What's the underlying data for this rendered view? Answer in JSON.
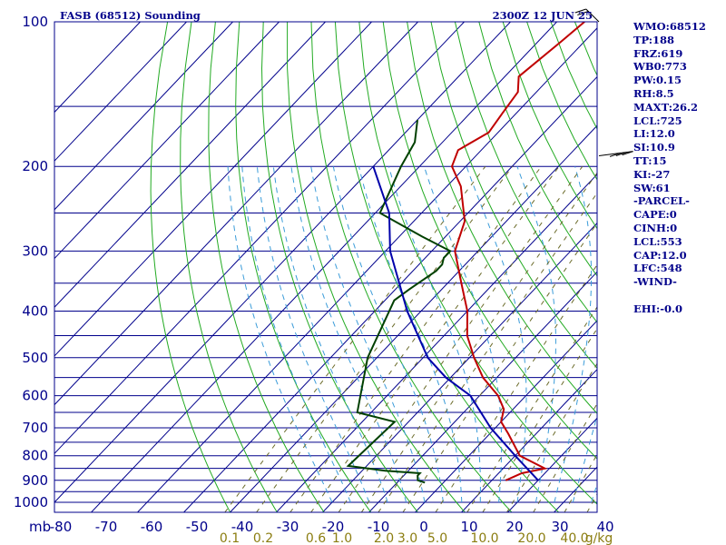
{
  "header": {
    "title": "FASB (68512) Sounding",
    "time": "2300Z 12 JUN 25"
  },
  "indices": [
    "WMO:68512",
    "TP:188",
    "FRZ:619",
    "WB0:773",
    "PW:0.15",
    "RH:8.5",
    "MAXT:26.2",
    "LCL:725",
    "LI:12.0",
    "SI:10.9",
    "TT:15",
    "KI:-27",
    "SW:61",
    "-PARCEL-",
    "CAPE:0",
    "CINH:0",
    "LCL:553",
    "CAP:12.0",
    "LFC:548",
    "-WIND-",
    "",
    "EHI:-0.0"
  ],
  "chart_data": {
    "type": "line",
    "title": "FASB (68512) Sounding",
    "subtitle": "2300Z 12 JUN 25",
    "xlabel": "",
    "ylabel": "mb",
    "x_range": [
      -80,
      0
    ],
    "pressure_range": [
      100,
      1000
    ],
    "y_scale": "log",
    "pressure_ticks": [
      100,
      200,
      300,
      400,
      500,
      600,
      700,
      800,
      900,
      1000
    ],
    "temperature_ticks": [
      "-80",
      "-70",
      "-60",
      "-50",
      "-40",
      "-30",
      "-20",
      "-10",
      "0",
      "10",
      "20",
      "30",
      "40"
    ],
    "mixing_ratio_labels": [
      "0.1",
      "0.2",
      "0.6",
      "1.0",
      "2.0",
      "3.0",
      "5.0",
      "10.0",
      "20.0",
      "40.0"
    ],
    "mixing_ratio_unit": "g/kg",
    "grid": true,
    "series": [
      {
        "role": "temperature",
        "color": "#c00000",
        "points": [
          [
            100,
            -64
          ],
          [
            110,
            -65
          ],
          [
            130,
            -67
          ],
          [
            140,
            -64
          ],
          [
            155,
            -63
          ],
          [
            170,
            -62
          ],
          [
            185,
            -65
          ],
          [
            200,
            -63
          ],
          [
            220,
            -57
          ],
          [
            260,
            -49
          ],
          [
            300,
            -45
          ],
          [
            350,
            -37
          ],
          [
            400,
            -30
          ],
          [
            450,
            -25
          ],
          [
            500,
            -19
          ],
          [
            550,
            -13
          ],
          [
            600,
            -6
          ],
          [
            640,
            -2
          ],
          [
            680,
            0
          ],
          [
            720,
            4
          ],
          [
            800,
            11
          ],
          [
            850,
            19
          ],
          [
            870,
            15
          ],
          [
            900,
            13
          ]
        ]
      },
      {
        "role": "dewpoint",
        "color": "#004000",
        "points": [
          [
            160,
            -80
          ],
          [
            178,
            -76
          ],
          [
            200,
            -74
          ],
          [
            250,
            -69
          ],
          [
            280,
            -55
          ],
          [
            300,
            -46
          ],
          [
            310,
            -46
          ],
          [
            320,
            -45
          ],
          [
            330,
            -45
          ],
          [
            360,
            -47
          ],
          [
            380,
            -48
          ],
          [
            500,
            -42
          ],
          [
            650,
            -33
          ],
          [
            680,
            -23
          ],
          [
            840,
            -24
          ],
          [
            860,
            -15
          ],
          [
            870,
            -7
          ],
          [
            880,
            -7
          ],
          [
            900,
            -6
          ],
          [
            910,
            -4
          ]
        ]
      },
      {
        "role": "parcel",
        "color": "#0000aa",
        "points": [
          [
            200,
            -80
          ],
          [
            250,
            -67
          ],
          [
            300,
            -59
          ],
          [
            400,
            -43
          ],
          [
            500,
            -29
          ],
          [
            550,
            -21
          ],
          [
            600,
            -12
          ],
          [
            700,
            -1
          ],
          [
            800,
            10
          ],
          [
            900,
            20
          ]
        ]
      }
    ],
    "wind_barbs": [
      {
        "pressure": 100,
        "direction_deg": 60,
        "speed_kt": 20
      },
      {
        "pressure": 190,
        "direction_deg": 280,
        "speed_kt": 25
      }
    ]
  }
}
